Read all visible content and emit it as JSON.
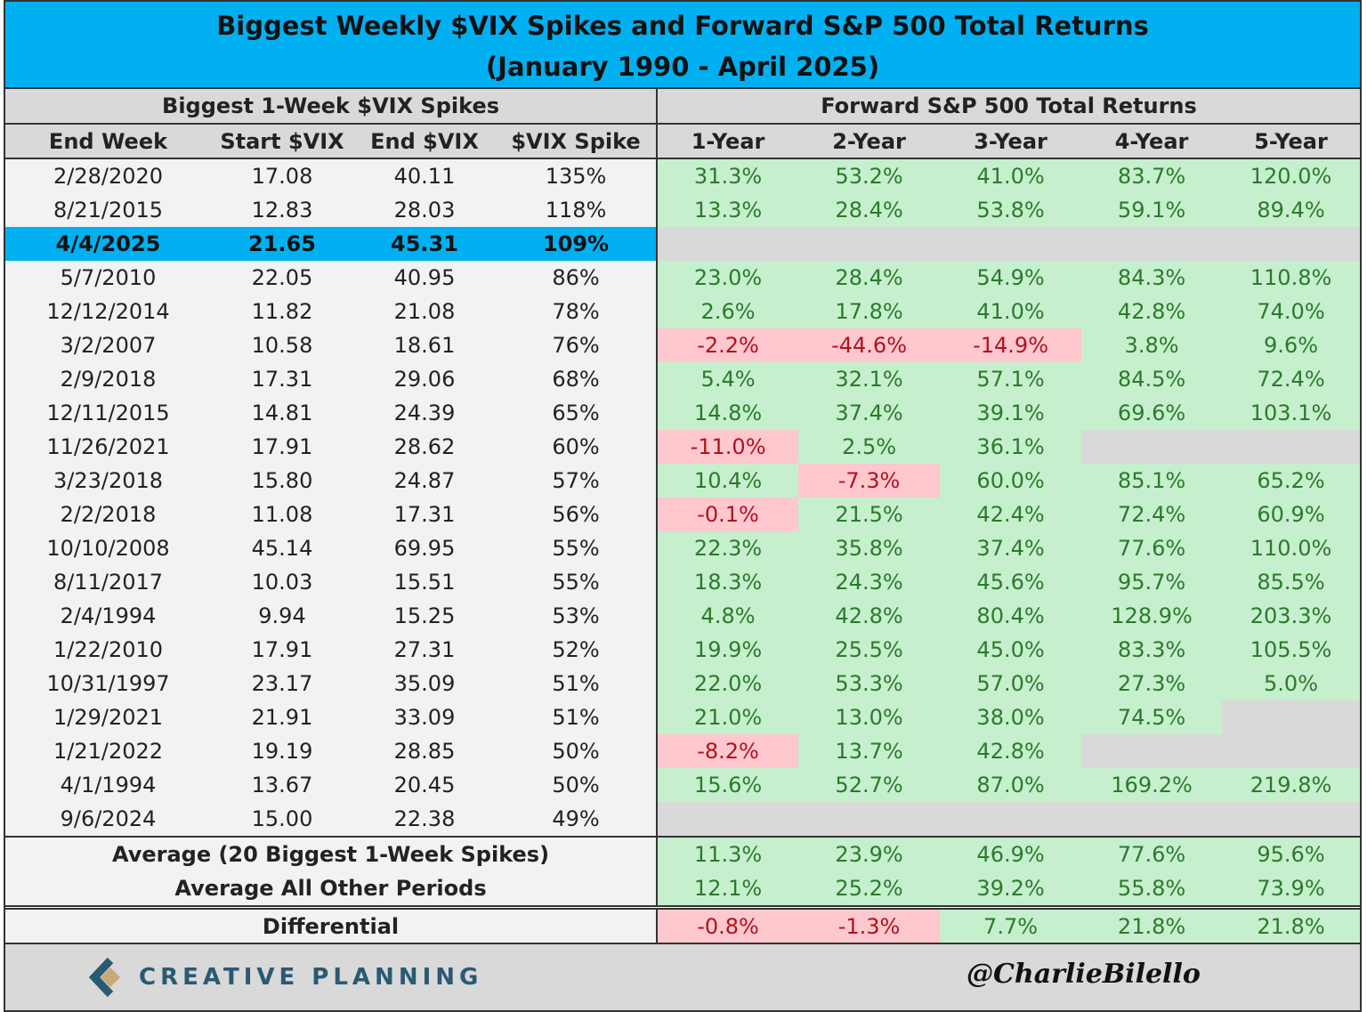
{
  "title": {
    "line1": "Biggest Weekly $VIX Spikes and Forward S&P 500 Total Returns",
    "line2": "(January 1990 - April 2025)"
  },
  "chart_data": {
    "type": "table",
    "group_headers": [
      "Biggest 1-Week $VIX Spikes",
      "Forward S&P 500 Total Returns"
    ],
    "columns": [
      "End Week",
      "Start $VIX",
      "End $VIX",
      "$VIX Spike",
      "1-Year",
      "2-Year",
      "3-Year",
      "4-Year",
      "5-Year"
    ],
    "rows": [
      {
        "date": "2/28/2020",
        "start": "17.08",
        "end": "40.11",
        "spike": "135%",
        "fwd": [
          "31.3%",
          "53.2%",
          "41.0%",
          "83.7%",
          "120.0%"
        ]
      },
      {
        "date": "8/21/2015",
        "start": "12.83",
        "end": "28.03",
        "spike": "118%",
        "fwd": [
          "13.3%",
          "28.4%",
          "53.8%",
          "59.1%",
          "89.4%"
        ]
      },
      {
        "date": "4/4/2025",
        "start": "21.65",
        "end": "45.31",
        "spike": "109%",
        "fwd": [
          null,
          null,
          null,
          null,
          null
        ],
        "highlight": true
      },
      {
        "date": "5/7/2010",
        "start": "22.05",
        "end": "40.95",
        "spike": "86%",
        "fwd": [
          "23.0%",
          "28.4%",
          "54.9%",
          "84.3%",
          "110.8%"
        ]
      },
      {
        "date": "12/12/2014",
        "start": "11.82",
        "end": "21.08",
        "spike": "78%",
        "fwd": [
          "2.6%",
          "17.8%",
          "41.0%",
          "42.8%",
          "74.0%"
        ]
      },
      {
        "date": "3/2/2007",
        "start": "10.58",
        "end": "18.61",
        "spike": "76%",
        "fwd": [
          "-2.2%",
          "-44.6%",
          "-14.9%",
          "3.8%",
          "9.6%"
        ]
      },
      {
        "date": "2/9/2018",
        "start": "17.31",
        "end": "29.06",
        "spike": "68%",
        "fwd": [
          "5.4%",
          "32.1%",
          "57.1%",
          "84.5%",
          "72.4%"
        ]
      },
      {
        "date": "12/11/2015",
        "start": "14.81",
        "end": "24.39",
        "spike": "65%",
        "fwd": [
          "14.8%",
          "37.4%",
          "39.1%",
          "69.6%",
          "103.1%"
        ]
      },
      {
        "date": "11/26/2021",
        "start": "17.91",
        "end": "28.62",
        "spike": "60%",
        "fwd": [
          "-11.0%",
          "2.5%",
          "36.1%",
          null,
          null
        ]
      },
      {
        "date": "3/23/2018",
        "start": "15.80",
        "end": "24.87",
        "spike": "57%",
        "fwd": [
          "10.4%",
          "-7.3%",
          "60.0%",
          "85.1%",
          "65.2%"
        ]
      },
      {
        "date": "2/2/2018",
        "start": "11.08",
        "end": "17.31",
        "spike": "56%",
        "fwd": [
          "-0.1%",
          "21.5%",
          "42.4%",
          "72.4%",
          "60.9%"
        ]
      },
      {
        "date": "10/10/2008",
        "start": "45.14",
        "end": "69.95",
        "spike": "55%",
        "fwd": [
          "22.3%",
          "35.8%",
          "37.4%",
          "77.6%",
          "110.0%"
        ]
      },
      {
        "date": "8/11/2017",
        "start": "10.03",
        "end": "15.51",
        "spike": "55%",
        "fwd": [
          "18.3%",
          "24.3%",
          "45.6%",
          "95.7%",
          "85.5%"
        ]
      },
      {
        "date": "2/4/1994",
        "start": "9.94",
        "end": "15.25",
        "spike": "53%",
        "fwd": [
          "4.8%",
          "42.8%",
          "80.4%",
          "128.9%",
          "203.3%"
        ]
      },
      {
        "date": "1/22/2010",
        "start": "17.91",
        "end": "27.31",
        "spike": "52%",
        "fwd": [
          "19.9%",
          "25.5%",
          "45.0%",
          "83.3%",
          "105.5%"
        ]
      },
      {
        "date": "10/31/1997",
        "start": "23.17",
        "end": "35.09",
        "spike": "51%",
        "fwd": [
          "22.0%",
          "53.3%",
          "57.0%",
          "27.3%",
          "5.0%"
        ]
      },
      {
        "date": "1/29/2021",
        "start": "21.91",
        "end": "33.09",
        "spike": "51%",
        "fwd": [
          "21.0%",
          "13.0%",
          "38.0%",
          "74.5%",
          null
        ]
      },
      {
        "date": "1/21/2022",
        "start": "19.19",
        "end": "28.85",
        "spike": "50%",
        "fwd": [
          "-8.2%",
          "13.7%",
          "42.8%",
          null,
          null
        ]
      },
      {
        "date": "4/1/1994",
        "start": "13.67",
        "end": "20.45",
        "spike": "50%",
        "fwd": [
          "15.6%",
          "52.7%",
          "87.0%",
          "169.2%",
          "219.8%"
        ]
      },
      {
        "date": "9/6/2024",
        "start": "15.00",
        "end": "22.38",
        "spike": "49%",
        "fwd": [
          null,
          null,
          null,
          null,
          null
        ]
      }
    ],
    "summary": [
      {
        "label": "Average (20 Biggest 1-Week Spikes)",
        "fwd": [
          "11.3%",
          "23.9%",
          "46.9%",
          "77.6%",
          "95.6%"
        ]
      },
      {
        "label": "Average All Other Periods",
        "fwd": [
          "12.1%",
          "25.2%",
          "39.2%",
          "55.8%",
          "73.9%"
        ]
      }
    ],
    "differential": {
      "label": "Differential",
      "fwd": [
        "-0.8%",
        "-1.3%",
        "7.7%",
        "21.8%",
        "21.8%"
      ]
    },
    "colors": {
      "title_bg": "#00b0f0",
      "highlight_row": "#00b0f0",
      "positive_bg": "#c6efce",
      "positive_text": "#2b7a2b",
      "negative_bg": "#ffc7ce",
      "negative_text": "#b0121f",
      "blank_bg": "#d9d9d9"
    }
  },
  "footer": {
    "logo_text": "CREATIVE PLANNING",
    "handle": "@CharlieBilello"
  }
}
